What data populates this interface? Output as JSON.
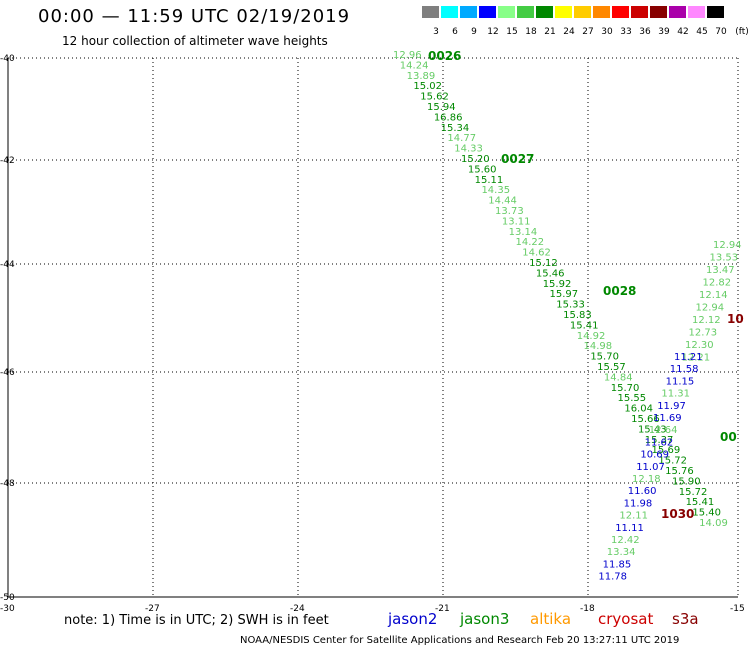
{
  "header": {
    "title": "00:00 — 11:59 UTC 02/19/2019",
    "subtitle": "12 hour collection of altimeter wave heights"
  },
  "scale": {
    "labels": [
      "3",
      "6",
      "9",
      "12",
      "15",
      "18",
      "21",
      "24",
      "27",
      "30",
      "33",
      "36",
      "39",
      "42",
      "45",
      "70"
    ],
    "unit": "(ft)",
    "colors": [
      "#7f7f7f",
      "#00ffff",
      "#00aaff",
      "#0000ff",
      "#88ff88",
      "#44cc44",
      "#008800",
      "#ffff00",
      "#ffcc00",
      "#ff8800",
      "#ff0000",
      "#cc0000",
      "#880000",
      "#aa00aa",
      "#ff88ff",
      "#000000"
    ]
  },
  "axes": {
    "lat_labels": [
      "-40",
      "-42",
      "-44",
      "-46",
      "-48",
      "-50"
    ],
    "lon_labels": [
      "-30",
      "-27",
      "-24",
      "-21",
      "-18",
      "-15"
    ]
  },
  "tracks": [
    {
      "id": "0026",
      "color": "#008800",
      "points": [
        {
          "v": "12.96",
          "c": "#66cc66"
        },
        {
          "v": "14.24",
          "c": "#66cc66"
        },
        {
          "v": "13.89",
          "c": "#66cc66"
        },
        {
          "v": "15.02",
          "c": "#008800"
        },
        {
          "v": "15.62",
          "c": "#008800"
        },
        {
          "v": "15.94",
          "c": "#008800"
        },
        {
          "v": "16.86",
          "c": "#008800"
        },
        {
          "v": "15.34",
          "c": "#008800"
        },
        {
          "v": "14.77",
          "c": "#66cc66"
        },
        {
          "v": "14.33",
          "c": "#66cc66"
        },
        {
          "v": "15.20",
          "c": "#008800"
        },
        {
          "v": "15.60",
          "c": "#008800"
        },
        {
          "v": "15.11",
          "c": "#008800"
        },
        {
          "v": "14.35",
          "c": "#66cc66"
        },
        {
          "v": "14.44",
          "c": "#66cc66"
        },
        {
          "v": "13.73",
          "c": "#66cc66"
        },
        {
          "v": "13.11",
          "c": "#66cc66"
        },
        {
          "v": "13.14",
          "c": "#66cc66"
        },
        {
          "v": "14.22",
          "c": "#66cc66"
        },
        {
          "v": "14.62",
          "c": "#66cc66"
        },
        {
          "v": "15.12",
          "c": "#008800"
        },
        {
          "v": "15.46",
          "c": "#008800"
        },
        {
          "v": "15.92",
          "c": "#008800"
        },
        {
          "v": "15.97",
          "c": "#008800"
        },
        {
          "v": "15.33",
          "c": "#008800"
        },
        {
          "v": "15.83",
          "c": "#008800"
        },
        {
          "v": "15.41",
          "c": "#008800"
        },
        {
          "v": "14.92",
          "c": "#66cc66"
        },
        {
          "v": "14.98",
          "c": "#66cc66"
        },
        {
          "v": "15.70",
          "c": "#008800"
        },
        {
          "v": "15.57",
          "c": "#008800"
        },
        {
          "v": "14.84",
          "c": "#66cc66"
        },
        {
          "v": "15.70",
          "c": "#008800"
        },
        {
          "v": "15.55",
          "c": "#008800"
        },
        {
          "v": "16.04",
          "c": "#008800"
        },
        {
          "v": "15.66",
          "c": "#008800"
        },
        {
          "v": "15.43",
          "c": "#008800"
        },
        {
          "v": "15.37",
          "c": "#008800"
        },
        {
          "v": "15.69",
          "c": "#008800"
        },
        {
          "v": "15.72",
          "c": "#008800"
        },
        {
          "v": "15.76",
          "c": "#008800"
        },
        {
          "v": "15.90",
          "c": "#008800"
        },
        {
          "v": "15.72",
          "c": "#008800"
        },
        {
          "v": "15.41",
          "c": "#008800"
        },
        {
          "v": "15.40",
          "c": "#008800"
        },
        {
          "v": "14.09",
          "c": "#66cc66"
        }
      ]
    },
    {
      "id": "0027",
      "color": "#008800"
    },
    {
      "id": "0028",
      "color": "#008800"
    },
    {
      "id": "1030",
      "color": "#880000"
    },
    {
      "id": "00",
      "color": "#008800"
    },
    {
      "id": "10",
      "color": "#880000"
    }
  ],
  "rightTrack": {
    "points": [
      {
        "v": "12.94",
        "c": "#66cc66"
      },
      {
        "v": "13.53",
        "c": "#66cc66"
      },
      {
        "v": "13.47",
        "c": "#66cc66"
      },
      {
        "v": "12.82",
        "c": "#66cc66"
      },
      {
        "v": "12.14",
        "c": "#66cc66"
      },
      {
        "v": "12.94",
        "c": "#66cc66"
      },
      {
        "v": "12.12",
        "c": "#66cc66"
      },
      {
        "v": "12.73",
        "c": "#66cc66"
      },
      {
        "v": "12.30",
        "c": "#66cc66"
      },
      {
        "v": "12.21",
        "c": "#66cc66"
      }
    ]
  },
  "blueTrack": {
    "points": [
      {
        "v": "11.21",
        "c": "#0000cc"
      },
      {
        "v": "11.58",
        "c": "#0000cc"
      },
      {
        "v": "11.15",
        "c": "#0000cc"
      },
      {
        "v": "11.31",
        "c": "#66cc66"
      },
      {
        "v": "11.97",
        "c": "#0000cc"
      },
      {
        "v": "11.69",
        "c": "#0000cc"
      },
      {
        "v": "12.64",
        "c": "#66cc66"
      },
      {
        "v": "11.62",
        "c": "#0000cc"
      },
      {
        "v": "10.69",
        "c": "#0000cc"
      },
      {
        "v": "11.07",
        "c": "#0000cc"
      },
      {
        "v": "12.18",
        "c": "#66cc66"
      },
      {
        "v": "11.60",
        "c": "#0000cc"
      },
      {
        "v": "11.98",
        "c": "#0000cc"
      },
      {
        "v": "12.11",
        "c": "#66cc66"
      },
      {
        "v": "11.11",
        "c": "#0000cc"
      },
      {
        "v": "12.42",
        "c": "#66cc66"
      },
      {
        "v": "13.34",
        "c": "#66cc66"
      },
      {
        "v": "11.85",
        "c": "#0000cc"
      },
      {
        "v": "11.78",
        "c": "#0000cc"
      }
    ]
  },
  "footer": {
    "note": "note: 1) Time is in UTC; 2) SWH is in feet",
    "legend": [
      {
        "label": "jason2",
        "color": "#0000cc"
      },
      {
        "label": "jason3",
        "color": "#008800"
      },
      {
        "label": "altika",
        "color": "#ff9900"
      },
      {
        "label": "cryosat",
        "color": "#cc0000"
      },
      {
        "label": "s3a",
        "color": "#880000"
      }
    ],
    "credit": "NOAA/NESDIS Center for Satellite Applications and Research     Feb 20 13:27:11 UTC 2019"
  }
}
